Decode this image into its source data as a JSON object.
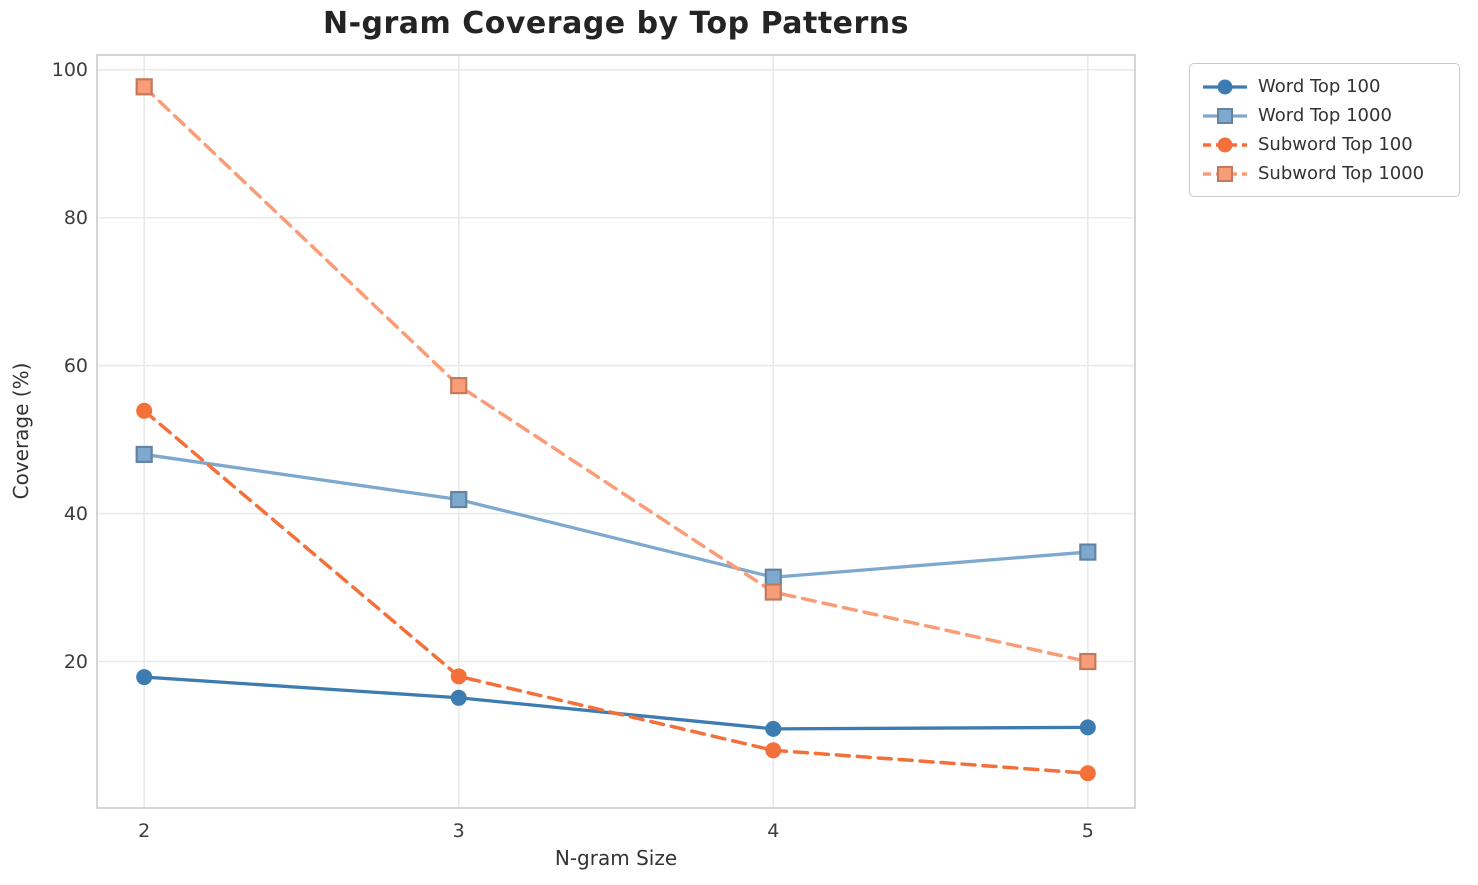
{
  "chart_data": {
    "type": "line",
    "title": "N-gram Coverage by Top Patterns",
    "xlabel": "N-gram Size",
    "ylabel": "Coverage (%)",
    "x": [
      2,
      3,
      4,
      5
    ],
    "series": [
      {
        "name": "Word Top 100",
        "color": "#3d7cb1",
        "marker": "circle",
        "linestyle": "solid",
        "values": [
          17.9,
          15.1,
          10.9,
          11.1
        ]
      },
      {
        "name": "Word Top 1000",
        "color": "#7fa8cf",
        "marker": "square",
        "linestyle": "solid",
        "values": [
          48.0,
          41.9,
          31.4,
          34.8
        ]
      },
      {
        "name": "Subword Top 100",
        "color": "#f4703b",
        "marker": "circle",
        "linestyle": "dashed",
        "values": [
          53.9,
          18.0,
          8.0,
          4.9
        ]
      },
      {
        "name": "Subword Top 1000",
        "color": "#f99c78",
        "marker": "square",
        "linestyle": "dashed",
        "values": [
          97.7,
          57.3,
          29.4,
          20.0
        ]
      }
    ],
    "xticks": [
      2,
      3,
      4,
      5
    ],
    "yticks": [
      20,
      40,
      60,
      80,
      100
    ],
    "xlim": [
      1.85,
      5.15
    ],
    "ylim": [
      0.2,
      102.0
    ],
    "grid": true,
    "legend_position": "outside-top-right",
    "colors": {
      "grid": "#e9e9e9",
      "spine": "#cccccc",
      "tick_label": "#3d3d3d",
      "title": "#242424"
    }
  }
}
